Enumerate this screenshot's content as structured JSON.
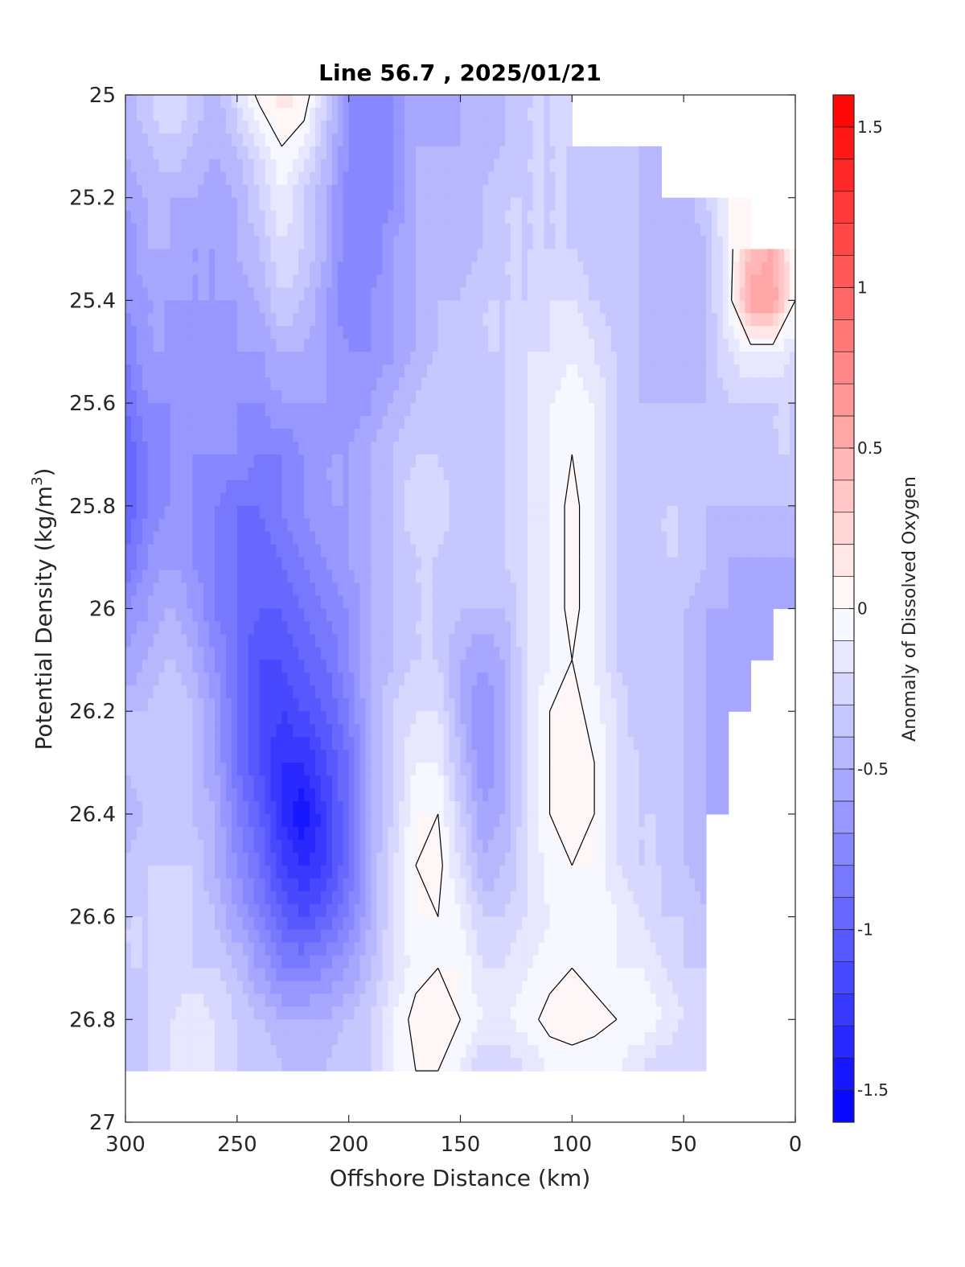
{
  "chart_data": {
    "type": "heatmap",
    "subtype": "filled-contour",
    "title": "Line 56.7 , 2025/01/21",
    "xlabel": "Offshore Distance (km)",
    "ylabel_main": "Potential Density (kg/m",
    "ylabel_sup": "3",
    "ylabel_close": ")",
    "xlim": [
      300,
      0
    ],
    "ylim": [
      27,
      25
    ],
    "y_reversed": true,
    "x_reversed": true,
    "xticks": [
      "300",
      "250",
      "200",
      "150",
      "100",
      "50",
      "0"
    ],
    "yticks": [
      "25",
      "25.2",
      "25.4",
      "25.6",
      "25.8",
      "26",
      "26.2",
      "26.4",
      "26.6",
      "26.8",
      "27"
    ],
    "colorbar": {
      "label": "Anomaly of Dissolved Oxygen",
      "clim": [
        -1.6,
        1.6
      ],
      "levels_step": 0.1,
      "ticks": [
        "1.5",
        "1",
        "0.5",
        "0",
        "-0.5",
        "-1",
        "-1.5"
      ],
      "low_color": "#0000ff",
      "mid_color": "#ffffff",
      "high_color": "#ff0000"
    },
    "x": [
      300,
      290,
      280,
      270,
      260,
      250,
      240,
      230,
      220,
      210,
      200,
      190,
      180,
      170,
      160,
      150,
      140,
      130,
      120,
      110,
      100,
      90,
      80,
      70,
      60,
      50,
      40,
      30,
      20,
      10,
      0
    ],
    "y": [
      25,
      25.1,
      25.2,
      25.3,
      25.4,
      25.5,
      25.6,
      25.7,
      25.8,
      25.9,
      26,
      26.1,
      26.2,
      26.3,
      26.4,
      26.5,
      26.6,
      26.7,
      26.8,
      26.9
    ],
    "anomaly_grid": [
      [
        -0.5,
        -0.3,
        -0.2,
        -0.3,
        -0.5,
        -0.2,
        0.05,
        0.15,
        0.1,
        -0.3,
        -0.7,
        -0.8,
        -0.7,
        -0.5,
        -0.6,
        -0.5,
        -0.4,
        -0.4,
        -0.3,
        -0.3,
        null,
        null,
        null,
        null,
        null,
        null,
        null,
        null,
        null,
        null,
        null
      ],
      [
        -0.5,
        -0.4,
        -0.3,
        -0.4,
        -0.5,
        -0.4,
        -0.2,
        0.0,
        -0.1,
        -0.4,
        -0.7,
        -0.8,
        -0.7,
        -0.5,
        -0.5,
        -0.5,
        -0.5,
        -0.4,
        -0.3,
        -0.3,
        -0.3,
        -0.4,
        -0.4,
        -0.4,
        null,
        null,
        null,
        null,
        null,
        null,
        null
      ],
      [
        -0.6,
        -0.5,
        -0.5,
        -0.5,
        -0.6,
        -0.5,
        -0.3,
        -0.1,
        -0.3,
        -0.5,
        -0.8,
        -0.8,
        -0.7,
        -0.5,
        -0.5,
        -0.5,
        -0.4,
        -0.3,
        -0.3,
        -0.3,
        -0.3,
        -0.4,
        -0.4,
        -0.4,
        -0.4,
        -0.5,
        -0.3,
        -0.1,
        null,
        null,
        null
      ],
      [
        -0.7,
        -0.5,
        -0.5,
        -0.6,
        -0.6,
        -0.5,
        -0.4,
        -0.2,
        -0.3,
        -0.5,
        -0.8,
        -0.8,
        -0.6,
        -0.5,
        -0.5,
        -0.5,
        -0.4,
        -0.3,
        -0.3,
        -0.3,
        -0.3,
        -0.4,
        -0.4,
        -0.4,
        -0.5,
        -0.5,
        -0.4,
        -0.1,
        0.4,
        0.5,
        0.0
      ],
      [
        -0.7,
        -0.6,
        -0.6,
        -0.6,
        -0.6,
        -0.6,
        -0.5,
        -0.3,
        -0.4,
        -0.6,
        -0.8,
        -0.7,
        -0.6,
        -0.5,
        -0.4,
        -0.4,
        -0.3,
        -0.3,
        -0.3,
        -0.2,
        -0.2,
        -0.3,
        -0.4,
        -0.4,
        -0.5,
        -0.5,
        -0.4,
        -0.1,
        0.6,
        0.6,
        0.0
      ],
      [
        -0.8,
        -0.6,
        -0.6,
        -0.7,
        -0.7,
        -0.6,
        -0.6,
        -0.5,
        -0.5,
        -0.6,
        -0.7,
        -0.7,
        -0.6,
        -0.5,
        -0.4,
        -0.3,
        -0.3,
        -0.3,
        -0.2,
        -0.2,
        -0.1,
        -0.2,
        -0.3,
        -0.4,
        -0.5,
        -0.5,
        -0.4,
        -0.2,
        -0.1,
        -0.1,
        -0.2
      ],
      [
        -0.9,
        -0.7,
        -0.7,
        -0.7,
        -0.7,
        -0.7,
        -0.7,
        -0.6,
        -0.6,
        -0.6,
        -0.7,
        -0.6,
        -0.5,
        -0.4,
        -0.3,
        -0.4,
        -0.4,
        -0.3,
        -0.2,
        -0.1,
        -0.05,
        -0.1,
        -0.3,
        -0.4,
        -0.4,
        -0.4,
        -0.4,
        -0.3,
        -0.3,
        -0.3,
        -0.3
      ],
      [
        -1.0,
        -0.8,
        -0.7,
        -0.7,
        -0.7,
        -0.7,
        -0.8,
        -0.8,
        -0.7,
        -0.6,
        -0.6,
        -0.5,
        -0.4,
        -0.3,
        -0.3,
        -0.4,
        -0.4,
        -0.3,
        -0.2,
        -0.1,
        0.0,
        -0.1,
        -0.3,
        -0.4,
        -0.4,
        -0.4,
        -0.4,
        -0.4,
        -0.4,
        -0.3,
        -0.3
      ],
      [
        -1.0,
        -0.8,
        -0.7,
        -0.7,
        -0.8,
        -0.9,
        -0.9,
        -0.8,
        -0.7,
        -0.6,
        -0.6,
        -0.5,
        -0.4,
        -0.2,
        -0.2,
        -0.4,
        -0.4,
        -0.3,
        -0.2,
        -0.1,
        0.05,
        -0.1,
        -0.3,
        -0.4,
        -0.3,
        -0.3,
        -0.4,
        -0.4,
        -0.4,
        -0.4,
        -0.4
      ],
      [
        -0.9,
        -0.7,
        -0.6,
        -0.7,
        -0.8,
        -0.9,
        -1.0,
        -0.9,
        -0.8,
        -0.7,
        -0.6,
        -0.5,
        -0.4,
        -0.3,
        -0.3,
        -0.4,
        -0.4,
        -0.3,
        -0.2,
        -0.1,
        0.05,
        -0.1,
        -0.3,
        -0.4,
        -0.3,
        -0.3,
        -0.4,
        -0.5,
        -0.5,
        -0.5,
        -0.5
      ],
      [
        -0.7,
        -0.6,
        -0.5,
        -0.6,
        -0.8,
        -0.9,
        -1.0,
        -1.0,
        -0.9,
        -0.8,
        -0.7,
        -0.5,
        -0.4,
        -0.3,
        -0.3,
        -0.4,
        -0.4,
        -0.4,
        -0.2,
        -0.1,
        0.05,
        -0.1,
        -0.3,
        -0.4,
        -0.4,
        -0.4,
        -0.5,
        -0.5,
        -0.6,
        -0.6,
        null
      ],
      [
        -0.6,
        -0.5,
        -0.4,
        -0.5,
        -0.7,
        -0.9,
        -1.1,
        -1.1,
        -1.0,
        -0.9,
        -0.7,
        -0.5,
        -0.4,
        -0.3,
        -0.3,
        -0.5,
        -0.6,
        -0.5,
        -0.2,
        -0.1,
        0.0,
        -0.1,
        -0.3,
        -0.4,
        -0.4,
        -0.4,
        -0.5,
        -0.6,
        -0.6,
        null,
        null
      ],
      [
        -0.4,
        -0.4,
        -0.3,
        -0.4,
        -0.6,
        -0.9,
        -1.1,
        -1.2,
        -1.1,
        -1.0,
        -0.8,
        -0.5,
        -0.3,
        -0.2,
        -0.2,
        -0.5,
        -0.7,
        -0.5,
        -0.2,
        0.0,
        0.05,
        -0.05,
        -0.2,
        -0.4,
        -0.4,
        -0.4,
        -0.5,
        -0.6,
        null,
        null,
        null
      ],
      [
        -0.4,
        -0.3,
        -0.3,
        -0.4,
        -0.6,
        -0.9,
        -1.1,
        -1.3,
        -1.3,
        -1.1,
        -0.9,
        -0.5,
        -0.3,
        -0.1,
        -0.1,
        -0.4,
        -0.7,
        -0.5,
        -0.2,
        0.0,
        0.1,
        0.0,
        -0.2,
        -0.3,
        -0.4,
        -0.4,
        -0.5,
        -0.6,
        null,
        null,
        null
      ],
      [
        -0.5,
        -0.4,
        -0.3,
        -0.4,
        -0.5,
        -0.8,
        -1.0,
        -1.3,
        -1.5,
        -1.2,
        -0.9,
        -0.5,
        -0.3,
        0.0,
        0.0,
        -0.3,
        -0.6,
        -0.5,
        -0.2,
        0.0,
        0.05,
        0.0,
        -0.2,
        -0.3,
        -0.3,
        -0.4,
        -0.5,
        null,
        null,
        null,
        null
      ],
      [
        -0.4,
        -0.3,
        -0.3,
        -0.3,
        -0.5,
        -0.7,
        -0.9,
        -1.2,
        -1.3,
        -1.2,
        -0.9,
        -0.5,
        -0.2,
        0.0,
        0.05,
        -0.2,
        -0.5,
        -0.4,
        -0.2,
        -0.05,
        0.0,
        0.0,
        -0.2,
        -0.3,
        -0.3,
        -0.4,
        -0.5,
        null,
        null,
        null,
        null
      ],
      [
        -0.3,
        -0.3,
        -0.2,
        -0.3,
        -0.4,
        -0.6,
        -0.8,
        -1.0,
        -1.1,
        -1.0,
        -0.8,
        -0.5,
        -0.2,
        0.0,
        0.0,
        -0.1,
        -0.3,
        -0.3,
        -0.2,
        -0.1,
        -0.05,
        0.0,
        -0.1,
        -0.2,
        -0.3,
        -0.3,
        -0.4,
        null,
        null,
        null,
        null
      ],
      [
        -0.3,
        -0.3,
        -0.3,
        -0.3,
        -0.3,
        -0.4,
        -0.6,
        -0.8,
        -0.8,
        -0.7,
        -0.6,
        -0.4,
        -0.2,
        -0.05,
        0.0,
        0.0,
        -0.2,
        -0.2,
        -0.1,
        -0.05,
        0.0,
        -0.05,
        -0.1,
        -0.1,
        -0.2,
        -0.3,
        -0.3,
        null,
        null,
        null,
        null
      ],
      [
        -0.4,
        -0.3,
        -0.2,
        -0.1,
        -0.2,
        -0.3,
        -0.4,
        -0.5,
        -0.5,
        -0.5,
        -0.4,
        -0.3,
        -0.1,
        0.05,
        0.1,
        0.0,
        -0.1,
        -0.1,
        -0.05,
        0.05,
        0.1,
        0.05,
        0.0,
        0.0,
        -0.1,
        -0.2,
        -0.2,
        null,
        null,
        null,
        null
      ],
      [
        -0.4,
        -0.3,
        -0.2,
        -0.2,
        -0.2,
        -0.3,
        -0.3,
        -0.4,
        -0.4,
        -0.4,
        -0.3,
        -0.3,
        -0.1,
        0.0,
        0.0,
        -0.1,
        -0.3,
        -0.3,
        -0.2,
        -0.1,
        -0.1,
        -0.1,
        -0.1,
        -0.2,
        -0.3,
        -0.3,
        -0.3,
        null,
        null,
        null,
        null
      ]
    ]
  }
}
